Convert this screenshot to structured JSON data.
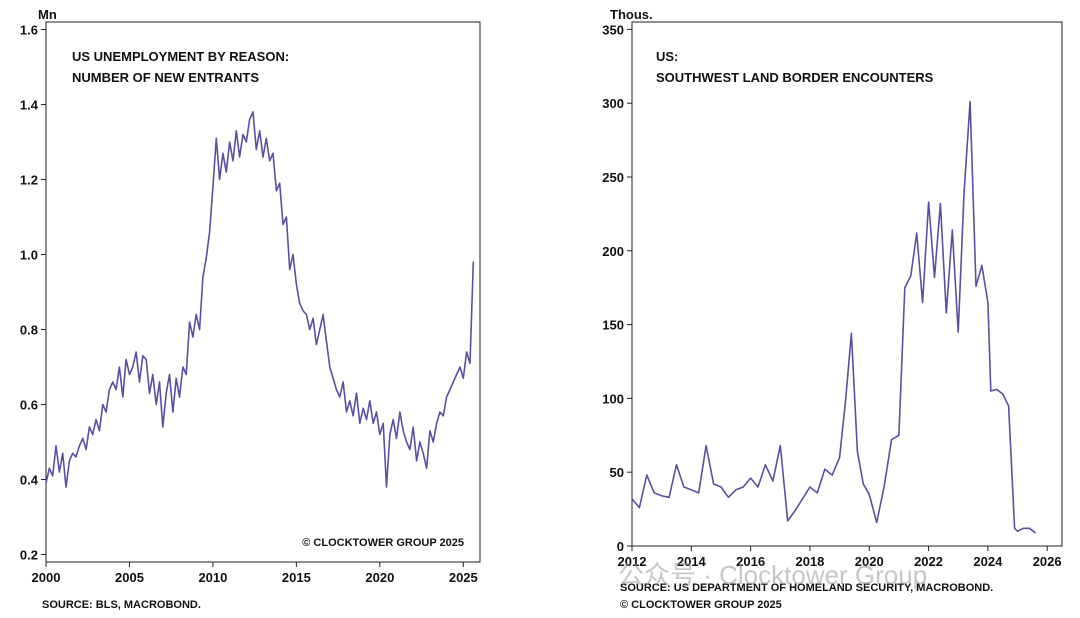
{
  "chart_data": [
    {
      "type": "line",
      "title_lines": [
        "US UNEMPLOYMENT BY REASON:",
        "NUMBER OF NEW ENTRANTS"
      ],
      "unit_label": "Mn",
      "copyright": "© CLOCKTOWER GROUP 2025",
      "source": "SOURCE: BLS, MACROBOND.",
      "line_color": "#5b4fa3",
      "xlim": [
        2000,
        2026
      ],
      "ylim": [
        0.18,
        1.62
      ],
      "xticks": [
        2000,
        2005,
        2010,
        2015,
        2020,
        2025
      ],
      "yticks": [
        0.2,
        0.4,
        0.6,
        0.8,
        1.0,
        1.2,
        1.4,
        1.6
      ],
      "ytick_labels": [
        "0.2",
        "0.4",
        "0.6",
        "0.8",
        "1.0",
        "1.2",
        "1.4",
        "1.6"
      ],
      "series": [
        {
          "x": [
            2000.0,
            2000.2,
            2000.4,
            2000.6,
            2000.8,
            2001.0,
            2001.2,
            2001.4,
            2001.6,
            2001.8,
            2002.0,
            2002.2,
            2002.4,
            2002.6,
            2002.8,
            2003.0,
            2003.2,
            2003.4,
            2003.6,
            2003.8,
            2004.0,
            2004.2,
            2004.4,
            2004.6,
            2004.8,
            2005.0,
            2005.2,
            2005.4,
            2005.6,
            2005.8,
            2006.0,
            2006.2,
            2006.4,
            2006.6,
            2006.8,
            2007.0,
            2007.2,
            2007.4,
            2007.6,
            2007.8,
            2008.0,
            2008.2,
            2008.4,
            2008.6,
            2008.8,
            2009.0,
            2009.2,
            2009.4,
            2009.6,
            2009.8,
            2010.0,
            2010.2,
            2010.4,
            2010.6,
            2010.8,
            2011.0,
            2011.2,
            2011.4,
            2011.6,
            2011.8,
            2012.0,
            2012.2,
            2012.4,
            2012.6,
            2012.8,
            2013.0,
            2013.2,
            2013.4,
            2013.6,
            2013.8,
            2014.0,
            2014.2,
            2014.4,
            2014.6,
            2014.8,
            2015.0,
            2015.2,
            2015.4,
            2015.6,
            2015.8,
            2016.0,
            2016.2,
            2016.4,
            2016.6,
            2016.8,
            2017.0,
            2017.2,
            2017.4,
            2017.6,
            2017.8,
            2018.0,
            2018.2,
            2018.4,
            2018.6,
            2018.8,
            2019.0,
            2019.2,
            2019.4,
            2019.6,
            2019.8,
            2020.0,
            2020.2,
            2020.4,
            2020.6,
            2020.8,
            2021.0,
            2021.2,
            2021.4,
            2021.6,
            2021.8,
            2022.0,
            2022.2,
            2022.4,
            2022.6,
            2022.8,
            2023.0,
            2023.2,
            2023.4,
            2023.6,
            2023.8,
            2024.0,
            2024.2,
            2024.4,
            2024.6,
            2024.8,
            2025.0,
            2025.2,
            2025.4,
            2025.6
          ],
          "y": [
            0.39,
            0.43,
            0.41,
            0.49,
            0.42,
            0.47,
            0.38,
            0.45,
            0.47,
            0.46,
            0.49,
            0.51,
            0.48,
            0.54,
            0.52,
            0.56,
            0.53,
            0.6,
            0.58,
            0.64,
            0.66,
            0.64,
            0.7,
            0.62,
            0.72,
            0.68,
            0.7,
            0.74,
            0.66,
            0.73,
            0.72,
            0.63,
            0.68,
            0.6,
            0.66,
            0.54,
            0.63,
            0.68,
            0.58,
            0.67,
            0.62,
            0.7,
            0.68,
            0.82,
            0.78,
            0.84,
            0.8,
            0.94,
            0.99,
            1.06,
            1.18,
            1.31,
            1.2,
            1.27,
            1.22,
            1.3,
            1.25,
            1.33,
            1.26,
            1.32,
            1.3,
            1.36,
            1.38,
            1.28,
            1.33,
            1.26,
            1.31,
            1.25,
            1.27,
            1.17,
            1.19,
            1.08,
            1.1,
            0.96,
            1.0,
            0.92,
            0.87,
            0.85,
            0.84,
            0.8,
            0.83,
            0.76,
            0.8,
            0.84,
            0.77,
            0.7,
            0.67,
            0.64,
            0.62,
            0.66,
            0.58,
            0.61,
            0.57,
            0.63,
            0.55,
            0.59,
            0.56,
            0.61,
            0.55,
            0.58,
            0.52,
            0.55,
            0.38,
            0.52,
            0.56,
            0.51,
            0.58,
            0.53,
            0.5,
            0.48,
            0.54,
            0.45,
            0.5,
            0.47,
            0.43,
            0.53,
            0.5,
            0.55,
            0.58,
            0.57,
            0.62,
            0.64,
            0.66,
            0.68,
            0.7,
            0.67,
            0.74,
            0.71,
            0.98
          ]
        }
      ]
    },
    {
      "type": "line",
      "title_lines": [
        "US:",
        "SOUTHWEST LAND BORDER ENCOUNTERS"
      ],
      "unit_label": "Thous.",
      "source": "SOURCE: US DEPARTMENT OF HOMELAND SECURITY, MACROBOND.",
      "copyright": "© CLOCKTOWER GROUP 2025",
      "line_color": "#5b4fa3",
      "xlim": [
        2012,
        2026.5
      ],
      "ylim": [
        0,
        355
      ],
      "xticks": [
        2012,
        2014,
        2016,
        2018,
        2020,
        2022,
        2024,
        2026
      ],
      "yticks": [
        0,
        50,
        100,
        150,
        200,
        250,
        300,
        350
      ],
      "series": [
        {
          "x": [
            2012.0,
            2012.25,
            2012.5,
            2012.75,
            2013.0,
            2013.25,
            2013.5,
            2013.75,
            2014.0,
            2014.25,
            2014.5,
            2014.75,
            2015.0,
            2015.25,
            2015.5,
            2015.75,
            2016.0,
            2016.25,
            2016.5,
            2016.75,
            2017.0,
            2017.25,
            2017.5,
            2017.75,
            2018.0,
            2018.25,
            2018.5,
            2018.75,
            2019.0,
            2019.2,
            2019.4,
            2019.6,
            2019.8,
            2020.0,
            2020.25,
            2020.5,
            2020.75,
            2021.0,
            2021.2,
            2021.4,
            2021.6,
            2021.8,
            2022.0,
            2022.2,
            2022.4,
            2022.6,
            2022.8,
            2023.0,
            2023.2,
            2023.4,
            2023.6,
            2023.8,
            2024.0,
            2024.1,
            2024.3,
            2024.5,
            2024.7,
            2024.9,
            2025.0,
            2025.2,
            2025.4,
            2025.6
          ],
          "y": [
            32,
            26,
            48,
            36,
            34,
            33,
            55,
            40,
            38,
            36,
            68,
            42,
            40,
            33,
            38,
            40,
            46,
            40,
            55,
            44,
            68,
            17,
            24,
            32,
            40,
            36,
            52,
            48,
            60,
            98,
            144,
            64,
            42,
            35,
            16,
            40,
            72,
            75,
            175,
            183,
            212,
            165,
            233,
            182,
            232,
            158,
            214,
            145,
            240,
            301,
            176,
            190,
            165,
            105,
            106,
            103,
            95,
            12,
            10,
            12,
            12,
            9
          ]
        }
      ]
    }
  ],
  "watermark_text": "公众号 · Clocktower Group"
}
